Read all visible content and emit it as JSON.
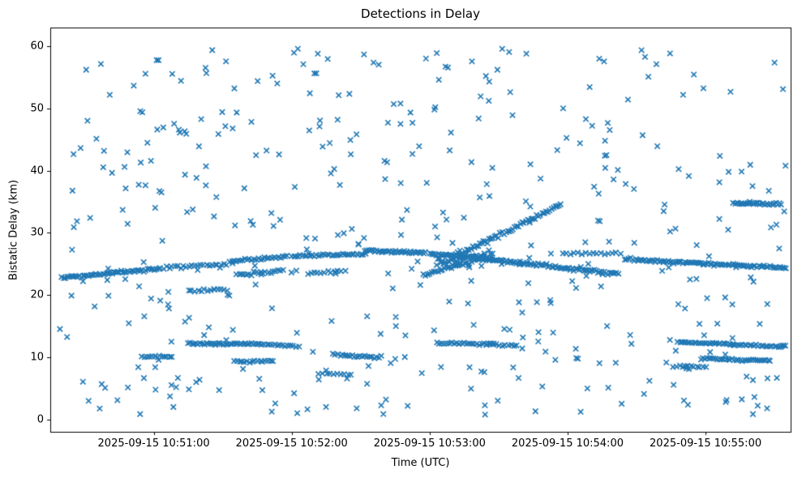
{
  "chart_data": {
    "type": "scatter",
    "title": "Detections in Delay",
    "xlabel": "Time (UTC)",
    "ylabel": "Bistatic Delay (km)",
    "marker": "x",
    "marker_color": "#1f77b4",
    "grid": false,
    "legend": null,
    "x_unit": "seconds after 2025-09-15 10:50:00 UTC",
    "xlim": [
      15,
      337
    ],
    "ylim": [
      -2,
      63
    ],
    "xticks": [
      {
        "t": 60,
        "label": "2025-09-15 10:51:00"
      },
      {
        "t": 120,
        "label": "2025-09-15 10:52:00"
      },
      {
        "t": 180,
        "label": "2025-09-15 10:53:00"
      },
      {
        "t": 240,
        "label": "2025-09-15 10:54:00"
      },
      {
        "t": 300,
        "label": "2025-09-15 10:55:00"
      }
    ],
    "yticks": [
      {
        "v": 0,
        "label": "0"
      },
      {
        "v": 10,
        "label": "10"
      },
      {
        "v": 20,
        "label": "20"
      },
      {
        "v": 30,
        "label": "30"
      },
      {
        "v": 40,
        "label": "40"
      },
      {
        "v": 50,
        "label": "50"
      },
      {
        "v": 60,
        "label": "60"
      }
    ],
    "tracks": [
      {
        "t": [
          20,
          62
        ],
        "y": [
          22.8,
          24.2
        ],
        "n": 55,
        "jitter": 0.12
      },
      {
        "t": [
          63,
          94
        ],
        "y": [
          24.3,
          25.1
        ],
        "n": 26,
        "jitter": 0.15
      },
      {
        "t": [
          75,
          92
        ],
        "y": [
          20.6,
          20.9
        ],
        "n": 13,
        "jitter": 0.1
      },
      {
        "t": [
          94,
          118
        ],
        "y": [
          25.4,
          26.2
        ],
        "n": 26,
        "jitter": 0.12
      },
      {
        "t": [
          96,
          116
        ],
        "y": [
          23.3,
          23.9
        ],
        "n": 20,
        "jitter": 0.12
      },
      {
        "t": [
          120,
          152
        ],
        "y": [
          26.2,
          26.6
        ],
        "n": 34,
        "jitter": 0.1
      },
      {
        "t": [
          127,
          143
        ],
        "y": [
          23.5,
          23.8
        ],
        "n": 12,
        "jitter": 0.1
      },
      {
        "t": [
          152,
          178
        ],
        "y": [
          27.1,
          26.8
        ],
        "n": 38,
        "jitter": 0.1
      },
      {
        "t": [
          178,
          200
        ],
        "y": [
          23.2,
          25.6
        ],
        "n": 24,
        "jitter": 0.15
      },
      {
        "t": [
          180,
          207
        ],
        "y": [
          26.6,
          25.9
        ],
        "n": 36,
        "jitter": 0.12
      },
      {
        "t": [
          183,
          207
        ],
        "y": [
          25.2,
          26.2
        ],
        "n": 40,
        "jitter": 0.45
      },
      {
        "t": [
          190,
          237
        ],
        "y": [
          26.0,
          34.5
        ],
        "n": 60,
        "jitter": 0.15
      },
      {
        "t": [
          200,
          262
        ],
        "y": [
          26.0,
          23.4
        ],
        "n": 85,
        "jitter": 0.12
      },
      {
        "t": [
          238,
          263
        ],
        "y": [
          26.8,
          26.6
        ],
        "n": 16,
        "jitter": 0.12
      },
      {
        "t": [
          265,
          335
        ],
        "y": [
          25.7,
          24.4
        ],
        "n": 90,
        "jitter": 0.1
      },
      {
        "t": [
          312,
          333
        ],
        "y": [
          34.8,
          34.6
        ],
        "n": 28,
        "jitter": 0.1
      },
      {
        "t": [
          55,
          68
        ],
        "y": [
          10.15,
          10.0
        ],
        "n": 13,
        "jitter": 0.08
      },
      {
        "t": [
          75,
          107
        ],
        "y": [
          12.25,
          12.1
        ],
        "n": 38,
        "jitter": 0.08
      },
      {
        "t": [
          95,
          112
        ],
        "y": [
          9.35,
          9.3
        ],
        "n": 16,
        "jitter": 0.08
      },
      {
        "t": [
          107,
          123
        ],
        "y": [
          12.05,
          11.75
        ],
        "n": 15,
        "jitter": 0.08
      },
      {
        "t": [
          138,
          158
        ],
        "y": [
          10.4,
          9.9
        ],
        "n": 20,
        "jitter": 0.1
      },
      {
        "t": [
          132,
          146
        ],
        "y": [
          7.35,
          7.2
        ],
        "n": 10,
        "jitter": 0.08
      },
      {
        "t": [
          183,
          208
        ],
        "y": [
          12.25,
          12.15
        ],
        "n": 24,
        "jitter": 0.08
      },
      {
        "t": [
          205,
          218
        ],
        "y": [
          12.0,
          11.9
        ],
        "n": 11,
        "jitter": 0.08
      },
      {
        "t": [
          286,
          300
        ],
        "y": [
          8.55,
          8.35
        ],
        "n": 12,
        "jitter": 0.08
      },
      {
        "t": [
          288,
          312
        ],
        "y": [
          12.4,
          12.1
        ],
        "n": 28,
        "jitter": 0.08
      },
      {
        "t": [
          312,
          335
        ],
        "y": [
          11.95,
          11.8
        ],
        "n": 24,
        "jitter": 0.08
      },
      {
        "t": [
          298,
          328
        ],
        "y": [
          9.8,
          9.4
        ],
        "n": 34,
        "jitter": 0.08
      }
    ],
    "clutter": {
      "seed": 1337,
      "count": 430,
      "t_range": [
        18,
        335
      ],
      "y_range": [
        0.5,
        59.6
      ]
    }
  }
}
